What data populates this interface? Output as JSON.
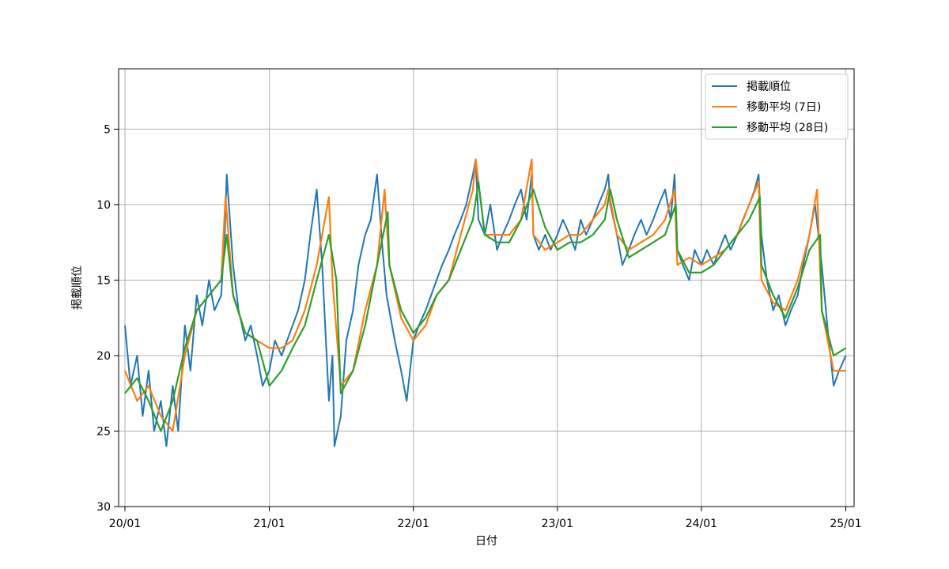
{
  "chart_data": {
    "type": "line",
    "title": "",
    "xlabel": "日付",
    "ylabel": "掲載順位",
    "y_inverted": true,
    "ylim": [
      30,
      1
    ],
    "yticks": [
      5,
      10,
      15,
      20,
      25,
      30
    ],
    "xlim": [
      "2019-12-16",
      "2025-01-22"
    ],
    "xticks": [
      {
        "date": "2020-01-01",
        "label": "20/01"
      },
      {
        "date": "2021-01-01",
        "label": "21/01"
      },
      {
        "date": "2022-01-01",
        "label": "22/01"
      },
      {
        "date": "2023-01-01",
        "label": "23/01"
      },
      {
        "date": "2024-01-01",
        "label": "24/01"
      },
      {
        "date": "2025-01-01",
        "label": "25/01"
      }
    ],
    "grid": true,
    "legend_position": "top-right",
    "series": [
      {
        "name": "掲載順位",
        "color": "#1f77b4",
        "dates": [
          "2020-01-01",
          "2020-01-15",
          "2020-02-01",
          "2020-02-15",
          "2020-03-01",
          "2020-03-15",
          "2020-04-01",
          "2020-04-15",
          "2020-05-01",
          "2020-05-15",
          "2020-06-01",
          "2020-06-15",
          "2020-07-01",
          "2020-07-15",
          "2020-08-01",
          "2020-08-15",
          "2020-09-01",
          "2020-09-10",
          "2020-09-15",
          "2020-10-01",
          "2020-10-15",
          "2020-11-01",
          "2020-11-15",
          "2020-12-01",
          "2020-12-15",
          "2021-01-01",
          "2021-01-15",
          "2021-02-01",
          "2021-02-15",
          "2021-03-01",
          "2021-03-15",
          "2021-04-01",
          "2021-04-15",
          "2021-05-01",
          "2021-05-15",
          "2021-06-01",
          "2021-06-10",
          "2021-06-15",
          "2021-07-01",
          "2021-07-15",
          "2021-08-01",
          "2021-08-15",
          "2021-09-01",
          "2021-09-15",
          "2021-10-01",
          "2021-10-15",
          "2021-10-25",
          "2021-11-01",
          "2021-11-15",
          "2021-12-01",
          "2021-12-15",
          "2022-01-01",
          "2022-01-15",
          "2022-02-01",
          "2022-02-15",
          "2022-03-01",
          "2022-03-15",
          "2022-04-01",
          "2022-04-15",
          "2022-05-01",
          "2022-05-15",
          "2022-06-01",
          "2022-06-08",
          "2022-06-15",
          "2022-07-01",
          "2022-07-15",
          "2022-08-01",
          "2022-08-15",
          "2022-09-01",
          "2022-09-15",
          "2022-10-01",
          "2022-10-15",
          "2022-10-28",
          "2022-11-01",
          "2022-11-15",
          "2022-12-01",
          "2022-12-15",
          "2023-01-01",
          "2023-01-15",
          "2023-02-01",
          "2023-02-15",
          "2023-03-01",
          "2023-03-15",
          "2023-04-01",
          "2023-04-15",
          "2023-05-01",
          "2023-05-10",
          "2023-05-15",
          "2023-06-01",
          "2023-06-15",
          "2023-07-01",
          "2023-07-15",
          "2023-08-01",
          "2023-08-15",
          "2023-09-01",
          "2023-09-15",
          "2023-10-01",
          "2023-10-15",
          "2023-10-25",
          "2023-11-01",
          "2023-11-15",
          "2023-12-01",
          "2023-12-15",
          "2024-01-01",
          "2024-01-15",
          "2024-02-01",
          "2024-02-15",
          "2024-03-01",
          "2024-03-15",
          "2024-04-01",
          "2024-04-15",
          "2024-05-01",
          "2024-05-15",
          "2024-05-25",
          "2024-06-01",
          "2024-06-15",
          "2024-07-01",
          "2024-07-15",
          "2024-08-01",
          "2024-08-15",
          "2024-09-01",
          "2024-09-15",
          "2024-10-01",
          "2024-10-15",
          "2024-11-01",
          "2024-11-15",
          "2024-12-01",
          "2024-12-15",
          "2025-01-01"
        ],
        "values": [
          18,
          22,
          20,
          24,
          21,
          25,
          23,
          26,
          22,
          25,
          18,
          21,
          16,
          18,
          15,
          17,
          16,
          12,
          8,
          14,
          17,
          19,
          18,
          20,
          22,
          21,
          19,
          20,
          19,
          18,
          17,
          15,
          12,
          9,
          14,
          23,
          20,
          26,
          24,
          19,
          17,
          14,
          12,
          11,
          8,
          13,
          16,
          17,
          19,
          21,
          23,
          19,
          18,
          17,
          16,
          15,
          14,
          13,
          12,
          11,
          10,
          8,
          7,
          11,
          12,
          10,
          13,
          12,
          11,
          10,
          9,
          11,
          8,
          12,
          13,
          12,
          13,
          12,
          11,
          12,
          13,
          11,
          12,
          11,
          10,
          9,
          8,
          10,
          12,
          14,
          13,
          12,
          11,
          12,
          11,
          10,
          9,
          11,
          8,
          13,
          14,
          15,
          13,
          14,
          13,
          14,
          13,
          12,
          13,
          12,
          11,
          10,
          9,
          8,
          12,
          15,
          17,
          16,
          18,
          17,
          16,
          14,
          12,
          10,
          14,
          18,
          22,
          21,
          20
        ]
      },
      {
        "name": "移動平均 (7日)",
        "color": "#ff7f0e",
        "dates": [
          "2020-01-01",
          "2020-02-01",
          "2020-03-01",
          "2020-04-01",
          "2020-05-01",
          "2020-06-01",
          "2020-07-01",
          "2020-08-01",
          "2020-09-01",
          "2020-09-12",
          "2020-10-01",
          "2020-11-01",
          "2020-12-01",
          "2021-01-01",
          "2021-02-01",
          "2021-03-01",
          "2021-04-01",
          "2021-05-01",
          "2021-06-01",
          "2021-06-10",
          "2021-07-01",
          "2021-08-01",
          "2021-09-01",
          "2021-10-01",
          "2021-10-20",
          "2021-11-01",
          "2021-12-01",
          "2022-01-01",
          "2022-02-01",
          "2022-03-01",
          "2022-04-01",
          "2022-05-01",
          "2022-06-01",
          "2022-06-08",
          "2022-07-01",
          "2022-08-01",
          "2022-09-01",
          "2022-10-01",
          "2022-10-28",
          "2022-11-01",
          "2022-12-01",
          "2023-01-01",
          "2023-02-01",
          "2023-03-01",
          "2023-04-01",
          "2023-05-01",
          "2023-05-10",
          "2023-06-01",
          "2023-07-01",
          "2023-08-01",
          "2023-09-01",
          "2023-10-01",
          "2023-10-25",
          "2023-11-01",
          "2023-12-01",
          "2024-01-01",
          "2024-02-01",
          "2024-03-01",
          "2024-04-01",
          "2024-05-01",
          "2024-05-25",
          "2024-06-01",
          "2024-07-01",
          "2024-08-01",
          "2024-09-01",
          "2024-10-01",
          "2024-10-20",
          "2024-11-01",
          "2024-12-01",
          "2025-01-01"
        ],
        "values": [
          21,
          23,
          22,
          24,
          25,
          20,
          17,
          16,
          15,
          9.5,
          16,
          18.5,
          19,
          19.5,
          19.5,
          19,
          17,
          14,
          9.5,
          15,
          22,
          21,
          17,
          14,
          9,
          14,
          17.5,
          19,
          18,
          16,
          15,
          12,
          9,
          7,
          12,
          12,
          12,
          11,
          7,
          12,
          13,
          12.5,
          12,
          12,
          11,
          10,
          9,
          12,
          13,
          12.5,
          12,
          11,
          9,
          14,
          13.5,
          14,
          13.5,
          13,
          12,
          10,
          8.5,
          15,
          16.5,
          17,
          15,
          12,
          9,
          17,
          21,
          21
        ]
      },
      {
        "name": "移動平均 (28日)",
        "color": "#2ca02c",
        "dates": [
          "2020-01-01",
          "2020-02-01",
          "2020-03-01",
          "2020-04-01",
          "2020-05-01",
          "2020-06-01",
          "2020-07-01",
          "2020-08-01",
          "2020-09-01",
          "2020-09-15",
          "2020-10-01",
          "2020-11-01",
          "2020-12-01",
          "2021-01-01",
          "2021-02-01",
          "2021-03-01",
          "2021-04-01",
          "2021-05-01",
          "2021-06-01",
          "2021-06-20",
          "2021-07-01",
          "2021-08-01",
          "2021-09-01",
          "2021-10-01",
          "2021-10-28",
          "2021-11-01",
          "2021-12-01",
          "2022-01-01",
          "2022-02-01",
          "2022-03-01",
          "2022-04-01",
          "2022-05-01",
          "2022-06-01",
          "2022-06-15",
          "2022-07-01",
          "2022-08-01",
          "2022-09-01",
          "2022-10-01",
          "2022-11-01",
          "2022-12-01",
          "2023-01-01",
          "2023-02-01",
          "2023-03-01",
          "2023-04-01",
          "2023-05-01",
          "2023-05-15",
          "2023-06-01",
          "2023-07-01",
          "2023-08-01",
          "2023-09-01",
          "2023-10-01",
          "2023-10-28",
          "2023-11-01",
          "2023-12-01",
          "2024-01-01",
          "2024-02-01",
          "2024-03-01",
          "2024-04-01",
          "2024-05-01",
          "2024-05-28",
          "2024-06-01",
          "2024-07-01",
          "2024-08-01",
          "2024-09-01",
          "2024-10-01",
          "2024-10-28",
          "2024-11-01",
          "2024-12-01",
          "2025-01-01"
        ],
        "values": [
          22.5,
          21.5,
          23,
          25,
          23,
          19.5,
          17,
          16,
          15,
          12,
          16,
          18.5,
          19,
          22,
          21,
          19.5,
          18,
          15,
          12,
          15,
          22.5,
          21,
          18,
          14,
          10.5,
          14,
          17,
          18.5,
          17.5,
          16,
          15,
          13,
          11,
          8.5,
          12,
          12.5,
          12.5,
          11,
          9,
          11.5,
          13,
          12.5,
          12.5,
          12,
          11,
          9,
          11,
          13.5,
          13,
          12.5,
          12,
          10,
          13,
          14.5,
          14.5,
          14,
          13,
          12,
          11,
          9.5,
          14,
          16,
          17.5,
          15.5,
          13,
          12,
          17,
          20,
          19.5
        ]
      }
    ]
  }
}
